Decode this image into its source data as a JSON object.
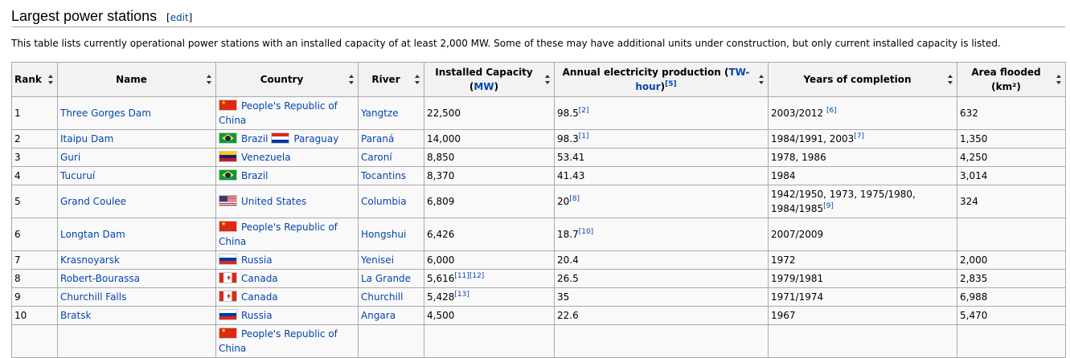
{
  "heading": {
    "title": "Largest power stations",
    "edit_open": "[",
    "edit_label": "edit",
    "edit_close": "]"
  },
  "intro": "This table lists currently operational power stations with an installed capacity of at least 2,000 MW. Some of these may have additional units under construction, but only current installed capacity is listed.",
  "table": {
    "headers": {
      "rank": "Rank",
      "name": "Name",
      "country": "Country",
      "river": "River",
      "capacity_pre": "Installed Capacity (",
      "capacity_link": "MW",
      "capacity_post": ")",
      "production_pre": "Annual electricity production (",
      "production_link": "TW-hour",
      "production_post": ")",
      "production_ref": "[5]",
      "years": "Years of completion",
      "area_line1": "Area flooded",
      "area_line2": "(km²)"
    },
    "rows": [
      {
        "rank": "1",
        "name": "Three Gorges Dam",
        "countries": [
          {
            "flag": "cn",
            "name": "People's Republic of China"
          }
        ],
        "river": "Yangtze",
        "capacity": "22,500",
        "capacity_ref": "",
        "production": "98.5",
        "production_ref": "[2]",
        "years": "2003/2012 ",
        "years_ref": "[6]",
        "area": "632"
      },
      {
        "rank": "2",
        "name": "Itaipu Dam",
        "countries": [
          {
            "flag": "br",
            "name": "Brazil"
          },
          {
            "flag": "py",
            "name": "Paraguay"
          }
        ],
        "river": "Paraná",
        "capacity": "14,000",
        "capacity_ref": "",
        "production": "98.3",
        "production_ref": "[1]",
        "years": "1984/1991, 2003",
        "years_ref": "[7]",
        "area": "1,350"
      },
      {
        "rank": "3",
        "name": "Guri",
        "countries": [
          {
            "flag": "ve",
            "name": "Venezuela"
          }
        ],
        "river": "Caroní",
        "capacity": "8,850",
        "capacity_ref": "",
        "production": "53.41",
        "production_ref": "",
        "years": "1978, 1986",
        "years_ref": "",
        "area": "4,250"
      },
      {
        "rank": "4",
        "name": "Tucuruí",
        "countries": [
          {
            "flag": "br",
            "name": "Brazil"
          }
        ],
        "river": "Tocantins",
        "capacity": "8,370",
        "capacity_ref": "",
        "production": "41.43",
        "production_ref": "",
        "years": "1984",
        "years_ref": "",
        "area": "3,014"
      },
      {
        "rank": "5",
        "name": "Grand Coulee",
        "countries": [
          {
            "flag": "us",
            "name": "United States"
          }
        ],
        "river": "Columbia",
        "capacity": "6,809",
        "capacity_ref": "",
        "production": "20",
        "production_ref": "[8]",
        "years": "1942/1950, 1973, 1975/1980, 1984/1985",
        "years_ref": "[9]",
        "area": "324"
      },
      {
        "rank": "6",
        "name": "Longtan Dam",
        "countries": [
          {
            "flag": "cn",
            "name": "People's Republic of China"
          }
        ],
        "river": "Hongshui",
        "capacity": "6,426",
        "capacity_ref": "",
        "production": "18.7",
        "production_ref": "[10]",
        "years": "2007/2009",
        "years_ref": "",
        "area": ""
      },
      {
        "rank": "7",
        "name": "Krasnoyarsk",
        "countries": [
          {
            "flag": "ru",
            "name": "Russia"
          }
        ],
        "river": "Yenisei",
        "capacity": "6,000",
        "capacity_ref": "",
        "production": "20.4",
        "production_ref": "",
        "years": "1972",
        "years_ref": "",
        "area": "2,000"
      },
      {
        "rank": "8",
        "name": "Robert-Bourassa",
        "countries": [
          {
            "flag": "ca",
            "name": "Canada"
          }
        ],
        "river": "La Grande",
        "capacity": "5,616",
        "capacity_ref": "[11][12]",
        "production": "26.5",
        "production_ref": "",
        "years": "1979/1981",
        "years_ref": "",
        "area": "2,835"
      },
      {
        "rank": "9",
        "name": "Churchill Falls",
        "countries": [
          {
            "flag": "ca",
            "name": "Canada"
          }
        ],
        "river": "Churchill",
        "capacity": "5,428",
        "capacity_ref": "[13]",
        "production": "35",
        "production_ref": "",
        "years": "1971/1974",
        "years_ref": "",
        "area": "6,988"
      },
      {
        "rank": "10",
        "name": "Bratsk",
        "countries": [
          {
            "flag": "ru",
            "name": "Russia"
          }
        ],
        "river": "Angara",
        "capacity": "4,500",
        "capacity_ref": "",
        "production": "22.6",
        "production_ref": "",
        "years": "1967",
        "years_ref": "",
        "area": "5,470"
      },
      {
        "rank": "",
        "name": "",
        "countries": [
          {
            "flag": "cn",
            "name": "People's Republic of China"
          }
        ],
        "river": "",
        "capacity": "",
        "capacity_ref": "",
        "production": "",
        "production_ref": "",
        "years": "",
        "years_ref": "",
        "area": ""
      }
    ]
  }
}
